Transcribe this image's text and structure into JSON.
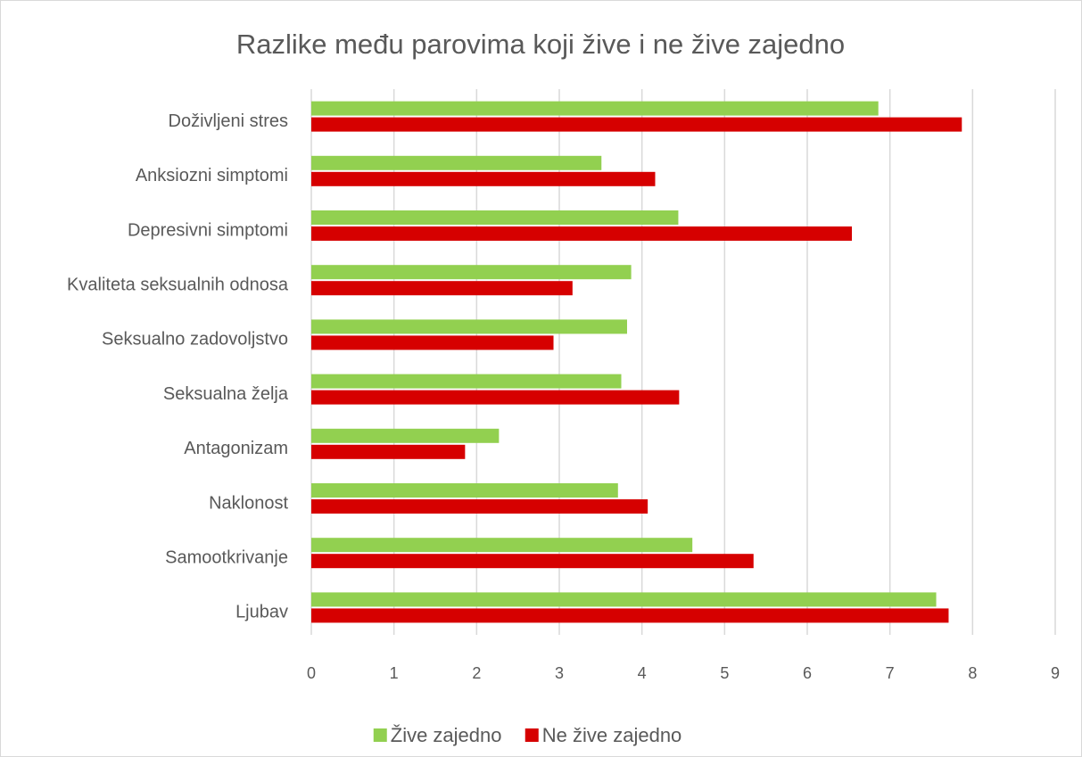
{
  "chart_data": {
    "type": "bar",
    "orientation": "horizontal",
    "title": "Razlike među parovima koji žive i ne žive zajedno",
    "categories": [
      "Doživljeni stres",
      "Anksiozni simptomi",
      "Depresivni simptomi",
      "Kvaliteta seksualnih odnosa",
      "Seksualno zadovoljstvo",
      "Seksualna želja",
      "Antagonizam",
      "Naklonost",
      "Samootkrivanje",
      "Ljubav"
    ],
    "series": [
      {
        "name": "Žive zajedno",
        "color": "#92d050",
        "values": [
          6.86,
          3.51,
          4.44,
          3.87,
          3.82,
          3.75,
          2.27,
          3.71,
          4.61,
          7.56
        ]
      },
      {
        "name": "Ne žive zajedno",
        "color": "#d60000",
        "values": [
          7.87,
          4.16,
          6.54,
          3.16,
          2.93,
          4.45,
          1.86,
          4.07,
          5.35,
          7.71
        ]
      }
    ],
    "xlim": [
      0,
      9
    ],
    "xticks": [
      0,
      1,
      2,
      3,
      4,
      5,
      6,
      7,
      8,
      9
    ],
    "grid": true,
    "legend": "bottom"
  }
}
